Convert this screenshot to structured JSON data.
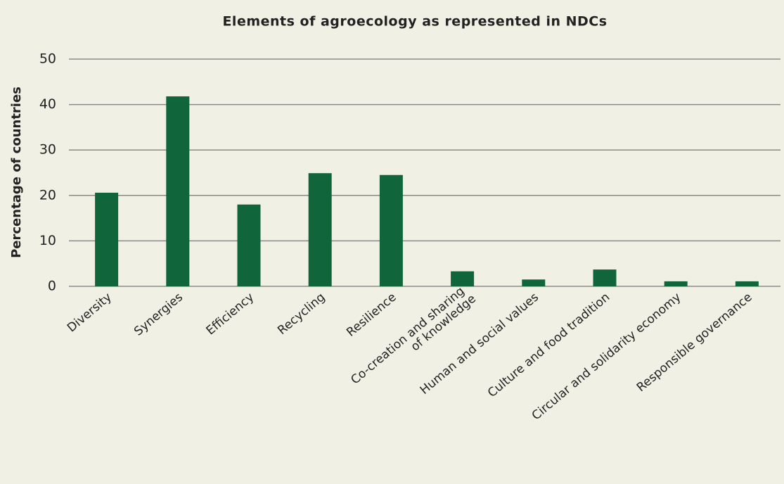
{
  "chart_data": {
    "type": "bar",
    "title": "Elements of agroecology as represented in NDCs",
    "y_label": "Percentage of countries",
    "categories": [
      "Diversity",
      "Synergies",
      "Efficiency",
      "Recycling",
      "Resilience",
      "Co-creation and sharing\nof knowledge",
      "Human and social values",
      "Culture and food tradition",
      "Circular and solidarity economy",
      "Responsible  governance"
    ],
    "values": [
      20.6,
      41.8,
      18,
      24.9,
      24.5,
      3.3,
      1.5,
      3.7,
      1.1,
      1.1
    ],
    "color": "#10663a",
    "ylim": [
      0,
      50
    ],
    "yticks": [
      0,
      10,
      20,
      30,
      40,
      50
    ],
    "grid": true
  }
}
